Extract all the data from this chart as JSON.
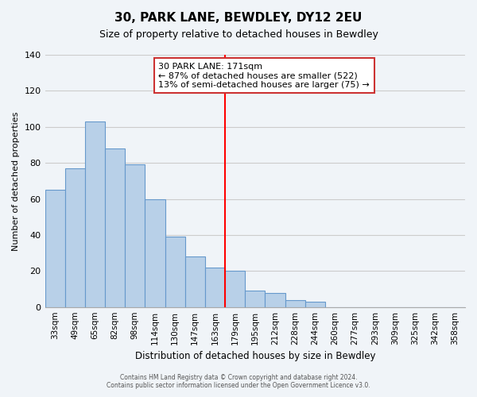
{
  "title": "30, PARK LANE, BEWDLEY, DY12 2EU",
  "subtitle": "Size of property relative to detached houses in Bewdley",
  "xlabel": "Distribution of detached houses by size in Bewdley",
  "ylabel": "Number of detached properties",
  "footer_line1": "Contains HM Land Registry data © Crown copyright and database right 2024.",
  "footer_line2": "Contains public sector information licensed under the Open Government Licence v3.0.",
  "bar_labels": [
    "33sqm",
    "49sqm",
    "65sqm",
    "82sqm",
    "98sqm",
    "114sqm",
    "130sqm",
    "147sqm",
    "163sqm",
    "179sqm",
    "195sqm",
    "212sqm",
    "228sqm",
    "244sqm",
    "260sqm",
    "277sqm",
    "293sqm",
    "309sqm",
    "325sqm",
    "342sqm",
    "358sqm"
  ],
  "bar_values": [
    65,
    77,
    103,
    88,
    79,
    60,
    39,
    28,
    22,
    20,
    9,
    8,
    4,
    3,
    0,
    0,
    0,
    0,
    0,
    0,
    0
  ],
  "bar_color": "#b8d0e8",
  "bar_edge_color": "#6699cc",
  "ylim": [
    0,
    140
  ],
  "yticks": [
    0,
    20,
    40,
    60,
    80,
    100,
    120,
    140
  ],
  "property_line_x": 8.5,
  "annotation_title": "30 PARK LANE: 171sqm",
  "annotation_line1": "← 87% of detached houses are smaller (522)",
  "annotation_line2": "13% of semi-detached houses are larger (75) →",
  "grid_color": "#cccccc",
  "background_color": "#f0f4f8"
}
